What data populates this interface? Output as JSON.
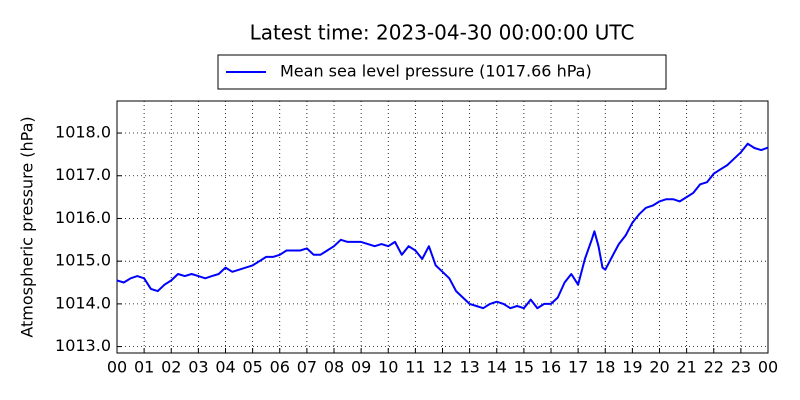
{
  "chart_data": {
    "type": "line",
    "title": "Latest time: 2023-04-30 00:00:00 UTC",
    "ylabel": "Atmospheric pressure (hPa)",
    "x": [
      0,
      0.25,
      0.5,
      0.75,
      1,
      1.25,
      1.5,
      1.75,
      2,
      2.25,
      2.5,
      2.75,
      3,
      3.25,
      3.5,
      3.75,
      4,
      4.25,
      4.5,
      4.75,
      5,
      5.25,
      5.5,
      5.75,
      6,
      6.25,
      6.5,
      6.75,
      7,
      7.25,
      7.5,
      7.75,
      8,
      8.25,
      8.5,
      8.75,
      9,
      9.25,
      9.5,
      9.75,
      10,
      10.25,
      10.5,
      10.75,
      11,
      11.25,
      11.5,
      11.75,
      12,
      12.25,
      12.5,
      12.75,
      13,
      13.25,
      13.5,
      13.75,
      14,
      14.25,
      14.5,
      14.75,
      15,
      15.25,
      15.5,
      15.75,
      16,
      16.25,
      16.5,
      16.75,
      17,
      17.25,
      17.5,
      17.6,
      17.75,
      17.9,
      18,
      18.25,
      18.5,
      18.75,
      19,
      19.25,
      19.5,
      19.75,
      20,
      20.25,
      20.5,
      20.75,
      21,
      21.25,
      21.5,
      21.75,
      22,
      22.25,
      22.5,
      22.75,
      23,
      23.25,
      23.5,
      23.75,
      24
    ],
    "series": [
      {
        "name": "Mean sea level pressure (1017.66 hPa)",
        "color": "#0000ff",
        "values": [
          1014.55,
          1014.5,
          1014.6,
          1014.65,
          1014.6,
          1014.35,
          1014.3,
          1014.45,
          1014.55,
          1014.7,
          1014.65,
          1014.7,
          1014.65,
          1014.6,
          1014.65,
          1014.7,
          1014.85,
          1014.75,
          1014.8,
          1014.85,
          1014.9,
          1015.0,
          1015.1,
          1015.1,
          1015.15,
          1015.25,
          1015.25,
          1015.25,
          1015.3,
          1015.15,
          1015.15,
          1015.25,
          1015.35,
          1015.5,
          1015.45,
          1015.45,
          1015.45,
          1015.4,
          1015.35,
          1015.4,
          1015.35,
          1015.45,
          1015.15,
          1015.35,
          1015.25,
          1015.05,
          1015.35,
          1014.9,
          1014.75,
          1014.6,
          1014.3,
          1014.15,
          1014.0,
          1013.95,
          1013.9,
          1014.0,
          1014.05,
          1014.0,
          1013.9,
          1013.95,
          1013.9,
          1014.1,
          1013.9,
          1014.0,
          1014.0,
          1014.15,
          1014.5,
          1014.7,
          1014.45,
          1015.05,
          1015.5,
          1015.7,
          1015.35,
          1014.85,
          1014.8,
          1015.1,
          1015.4,
          1015.6,
          1015.9,
          1016.1,
          1016.25,
          1016.3,
          1016.4,
          1016.45,
          1016.45,
          1016.4,
          1016.5,
          1016.6,
          1016.8,
          1016.85,
          1017.05,
          1017.15,
          1017.25,
          1017.4,
          1017.55,
          1017.75,
          1017.65,
          1017.6,
          1017.66
        ]
      }
    ],
    "xlim": [
      0,
      24
    ],
    "xticks": [
      {
        "value": 0,
        "label": "00"
      },
      {
        "value": 1,
        "label": "01"
      },
      {
        "value": 2,
        "label": "02"
      },
      {
        "value": 3,
        "label": "03"
      },
      {
        "value": 4,
        "label": "04"
      },
      {
        "value": 5,
        "label": "05"
      },
      {
        "value": 6,
        "label": "06"
      },
      {
        "value": 7,
        "label": "07"
      },
      {
        "value": 8,
        "label": "08"
      },
      {
        "value": 9,
        "label": "09"
      },
      {
        "value": 10,
        "label": "10"
      },
      {
        "value": 11,
        "label": "11"
      },
      {
        "value": 12,
        "label": "12"
      },
      {
        "value": 13,
        "label": "13"
      },
      {
        "value": 14,
        "label": "14"
      },
      {
        "value": 15,
        "label": "15"
      },
      {
        "value": 16,
        "label": "16"
      },
      {
        "value": 17,
        "label": "17"
      },
      {
        "value": 18,
        "label": "18"
      },
      {
        "value": 19,
        "label": "19"
      },
      {
        "value": 20,
        "label": "20"
      },
      {
        "value": 21,
        "label": "21"
      },
      {
        "value": 22,
        "label": "22"
      },
      {
        "value": 23,
        "label": "23"
      },
      {
        "value": 24,
        "label": "00"
      }
    ],
    "ylim": [
      1012.85,
      1018.75
    ],
    "yticks": [
      {
        "value": 1013,
        "label": "1013.0"
      },
      {
        "value": 1014,
        "label": "1014.0"
      },
      {
        "value": 1015,
        "label": "1015.0"
      },
      {
        "value": 1016,
        "label": "1016.0"
      },
      {
        "value": 1017,
        "label": "1017.0"
      },
      {
        "value": 1018,
        "label": "1018.0"
      }
    ],
    "grid": true
  }
}
